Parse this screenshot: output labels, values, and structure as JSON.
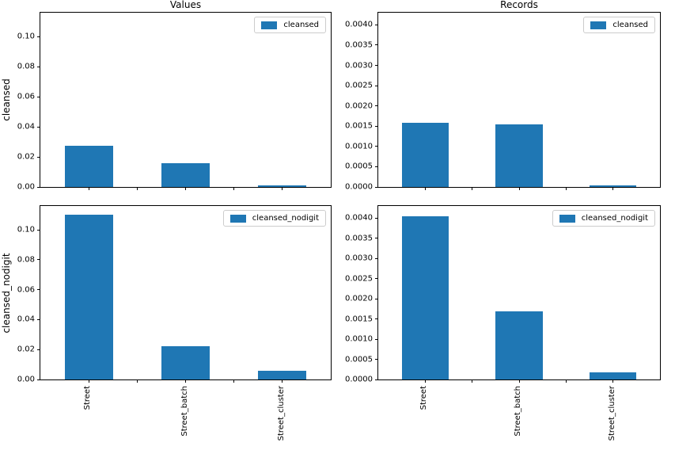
{
  "figure": {
    "background": "#ffffff",
    "bar_color": "#1f77b4",
    "axis_color": "#000000",
    "legend_border_color": "#cccccc",
    "column_titles": [
      "Values",
      "Records"
    ]
  },
  "chart_data": [
    {
      "type": "bar",
      "title": "Values",
      "ylabel": "cleansed",
      "legend": "cleansed",
      "legend_position": "upper right",
      "grid": false,
      "categories": [
        "Street",
        "Street_batch",
        "Street_cluster"
      ],
      "values": [
        0.0275,
        0.016,
        0.0012
      ],
      "ylim": [
        0,
        0.116
      ],
      "yticks": [
        0.0,
        0.02,
        0.04,
        0.06,
        0.08,
        0.1
      ],
      "ytick_labels": [
        "0.00",
        "0.02",
        "0.04",
        "0.06",
        "0.08",
        "0.10"
      ],
      "show_xtick_labels": false,
      "bar_color": "#1f77b4"
    },
    {
      "type": "bar",
      "title": "Records",
      "legend": "cleansed",
      "legend_position": "upper right",
      "grid": false,
      "categories": [
        "Street",
        "Street_batch",
        "Street_cluster"
      ],
      "values": [
        0.00158,
        0.00154,
        3e-05
      ],
      "ylim": [
        0,
        0.0043
      ],
      "yticks": [
        0.0,
        0.0005,
        0.001,
        0.0015,
        0.002,
        0.0025,
        0.003,
        0.0035,
        0.004
      ],
      "ytick_labels": [
        "0.0000",
        "0.0005",
        "0.0010",
        "0.0015",
        "0.0020",
        "0.0025",
        "0.0030",
        "0.0035",
        "0.0040"
      ],
      "show_xtick_labels": false,
      "bar_color": "#1f77b4"
    },
    {
      "type": "bar",
      "ylabel": "cleansed_nodigit",
      "legend": "cleansed_nodigit",
      "legend_position": "upper right",
      "grid": false,
      "categories": [
        "Street",
        "Street_batch",
        "Street_cluster"
      ],
      "values": [
        0.11,
        0.022,
        0.0057
      ],
      "ylim": [
        0,
        0.116
      ],
      "yticks": [
        0.0,
        0.02,
        0.04,
        0.06,
        0.08,
        0.1
      ],
      "ytick_labels": [
        "0.00",
        "0.02",
        "0.04",
        "0.06",
        "0.08",
        "0.10"
      ],
      "show_xtick_labels": true,
      "bar_color": "#1f77b4"
    },
    {
      "type": "bar",
      "legend": "cleansed_nodigit",
      "legend_position": "upper right",
      "grid": false,
      "categories": [
        "Street",
        "Street_batch",
        "Street_cluster"
      ],
      "values": [
        0.00405,
        0.00168,
        0.00017
      ],
      "ylim": [
        0,
        0.0043
      ],
      "yticks": [
        0.0,
        0.0005,
        0.001,
        0.0015,
        0.002,
        0.0025,
        0.003,
        0.0035,
        0.004
      ],
      "ytick_labels": [
        "0.0000",
        "0.0005",
        "0.0010",
        "0.0015",
        "0.0020",
        "0.0025",
        "0.0030",
        "0.0035",
        "0.0040"
      ],
      "show_xtick_labels": true,
      "bar_color": "#1f77b4"
    }
  ]
}
